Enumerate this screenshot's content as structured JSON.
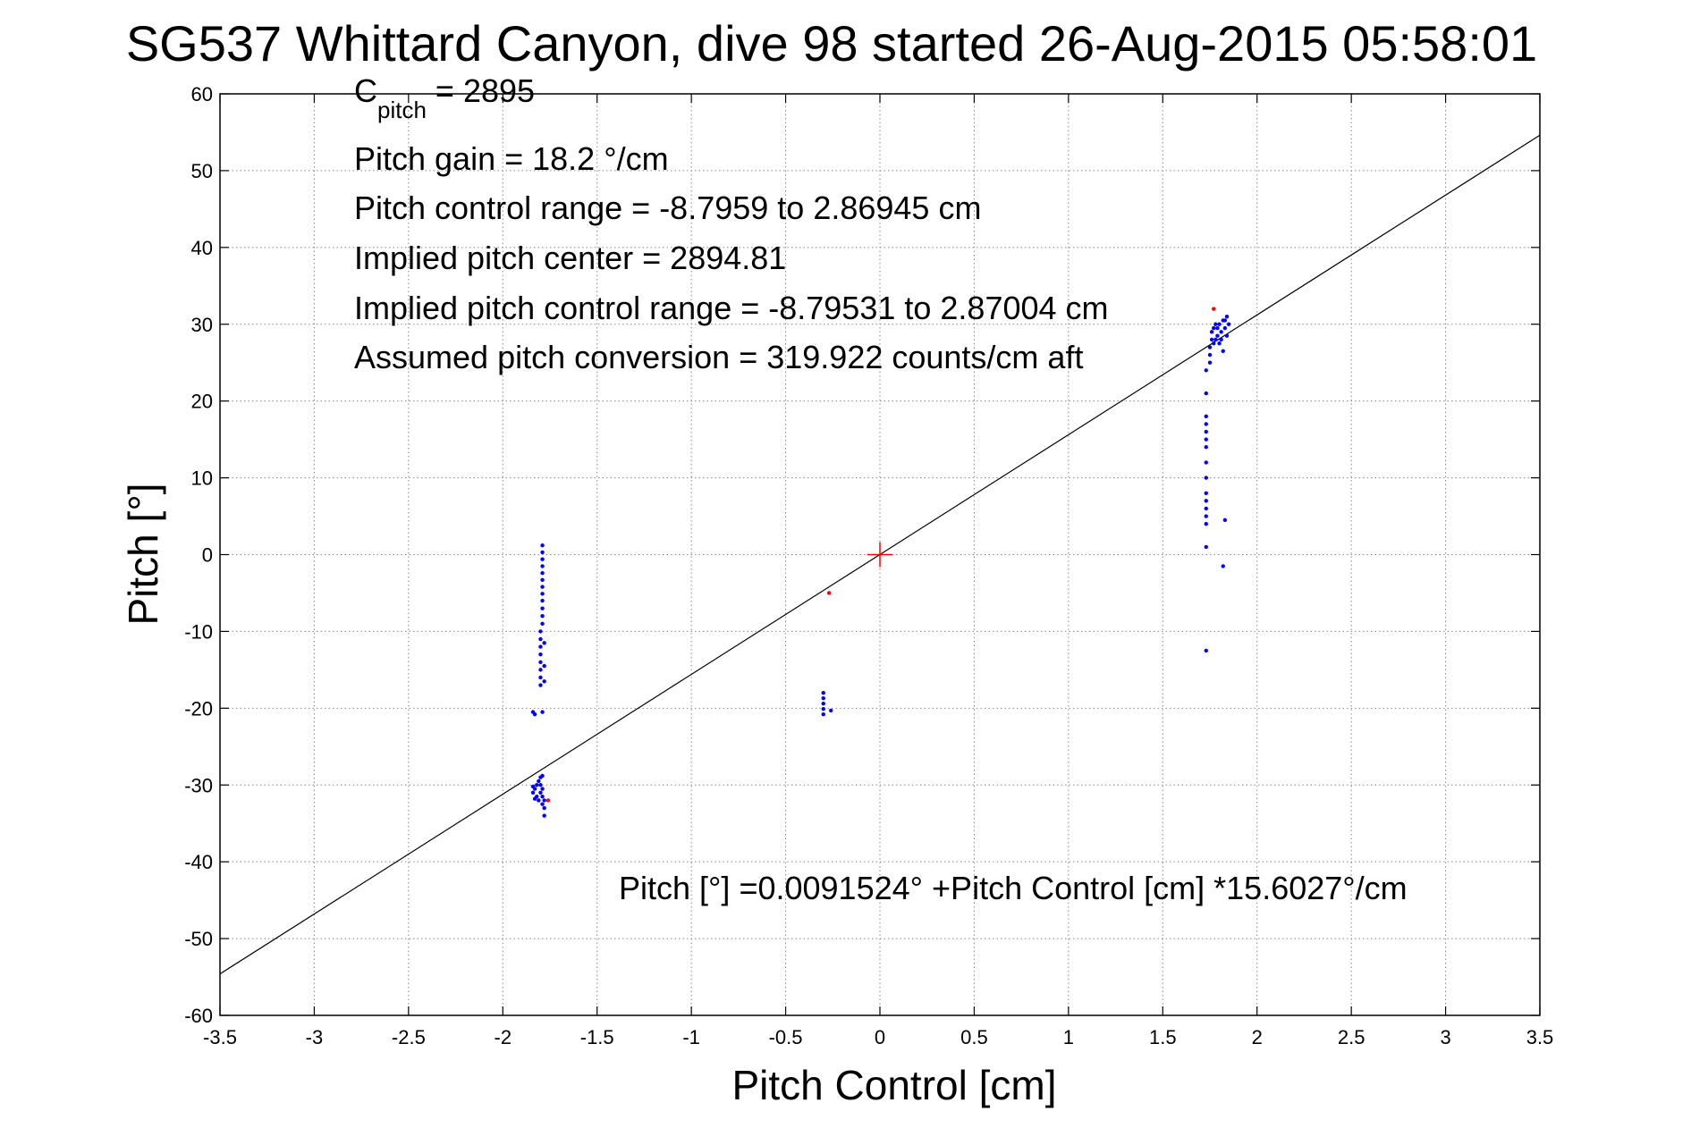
{
  "chart_data": {
    "type": "scatter",
    "title": "SG537 Whittard Canyon, dive 98 started 26-Aug-2015 05:58:01",
    "xlabel": "Pitch Control [cm]",
    "ylabel": "Pitch [°]",
    "xlim": [
      -3.5,
      3.5
    ],
    "ylim": [
      -60,
      60
    ],
    "grid": true,
    "legend": "none",
    "x_ticks": [
      "-3.5",
      "-3",
      "-2.5",
      "-2",
      "-1.5",
      "-1",
      "-0.5",
      "0",
      "0.5",
      "1",
      "1.5",
      "2",
      "2.5",
      "3",
      "3.5"
    ],
    "y_ticks": [
      "60",
      "50",
      "40",
      "30",
      "20",
      "10",
      "0",
      "-10",
      "-20",
      "-30",
      "-40",
      "-50",
      "-60"
    ],
    "annotations": {
      "c_pitch_main": "C",
      "c_pitch_sub": "pitch",
      "c_pitch_value": " = 2895",
      "pitch_gain": "Pitch gain = 18.2 °/cm",
      "control_range": "Pitch control range = -8.7959 to 2.86945 cm",
      "implied_center": "Implied pitch center = 2894.81",
      "implied_range": "Implied pitch control range = -8.79531 to 2.87004 cm",
      "conversion": "Assumed pitch conversion = 319.922 counts/cm aft",
      "fit_equation": "Pitch [°] =0.0091524° +Pitch Control [cm] *15.6027°/cm"
    },
    "fit_line": {
      "intercept": 0.0091524,
      "slope": 15.6027,
      "color": "#000000"
    },
    "center_marker": {
      "x": 0,
      "y": 0,
      "color": "#ff0000"
    },
    "series": [
      {
        "color": "#0000ff",
        "points": [
          [
            -1.79,
            1.2
          ],
          [
            -1.79,
            0.3
          ],
          [
            -1.79,
            -0.6
          ],
          [
            -1.79,
            -1.5
          ],
          [
            -1.79,
            -2.4
          ],
          [
            -1.79,
            -3.3
          ],
          [
            -1.79,
            -4.2
          ],
          [
            -1.79,
            -5.1
          ],
          [
            -1.79,
            -6.0
          ],
          [
            -1.79,
            -7.0
          ],
          [
            -1.79,
            -8.0
          ],
          [
            -1.79,
            -9.0
          ],
          [
            -1.8,
            -10.0
          ],
          [
            -1.8,
            -11.0
          ],
          [
            -1.8,
            -12.0
          ],
          [
            -1.8,
            -13.0
          ],
          [
            -1.8,
            -14.0
          ],
          [
            -1.8,
            -15.0
          ],
          [
            -1.8,
            -16.0
          ],
          [
            -1.8,
            -17.0
          ],
          [
            -1.78,
            -11.5
          ],
          [
            -1.78,
            -14.5
          ],
          [
            -1.78,
            -16.5
          ],
          [
            -1.84,
            -20.5
          ],
          [
            -1.83,
            -20.8
          ],
          [
            -1.79,
            -20.5
          ],
          [
            -1.84,
            -31.0
          ],
          [
            -1.83,
            -30.5
          ],
          [
            -1.82,
            -31.5
          ],
          [
            -1.82,
            -30.0
          ],
          [
            -1.81,
            -32.0
          ],
          [
            -1.81,
            -29.5
          ],
          [
            -1.8,
            -31.0
          ],
          [
            -1.8,
            -30.0
          ],
          [
            -1.8,
            -29.0
          ],
          [
            -1.79,
            -31.5
          ],
          [
            -1.79,
            -30.5
          ],
          [
            -1.79,
            -28.8
          ],
          [
            -1.78,
            -32.0
          ],
          [
            -1.78,
            -33.0
          ],
          [
            -1.78,
            -34.0
          ],
          [
            -1.79,
            -32.5
          ],
          [
            -1.83,
            -31.8
          ],
          [
            -1.84,
            -30.2
          ],
          [
            -0.3,
            -18.0
          ],
          [
            -0.3,
            -18.7
          ],
          [
            -0.3,
            -19.4
          ],
          [
            -0.3,
            -20.1
          ],
          [
            -0.3,
            -20.8
          ],
          [
            -0.26,
            -20.3
          ],
          [
            1.73,
            24.0
          ],
          [
            1.73,
            21.0
          ],
          [
            1.73,
            18.0
          ],
          [
            1.73,
            17.0
          ],
          [
            1.73,
            16.0
          ],
          [
            1.73,
            15.0
          ],
          [
            1.73,
            14.0
          ],
          [
            1.73,
            12.0
          ],
          [
            1.73,
            10.0
          ],
          [
            1.73,
            8.0
          ],
          [
            1.73,
            7.0
          ],
          [
            1.73,
            6.0
          ],
          [
            1.73,
            5.0
          ],
          [
            1.73,
            4.0
          ],
          [
            1.73,
            1.0
          ],
          [
            1.73,
            -12.5
          ],
          [
            1.83,
            4.5
          ],
          [
            1.82,
            -1.5
          ],
          [
            1.75,
            27.0
          ],
          [
            1.75,
            26.0
          ],
          [
            1.75,
            25.0
          ],
          [
            1.76,
            28.0
          ],
          [
            1.76,
            29.0
          ],
          [
            1.77,
            27.5
          ],
          [
            1.77,
            29.5
          ],
          [
            1.78,
            28.0
          ],
          [
            1.78,
            30.0
          ],
          [
            1.79,
            28.5
          ],
          [
            1.79,
            29.5
          ],
          [
            1.8,
            27.5
          ],
          [
            1.8,
            30.0
          ],
          [
            1.81,
            28.0
          ],
          [
            1.81,
            29.0
          ],
          [
            1.82,
            30.5
          ],
          [
            1.82,
            26.5
          ],
          [
            1.83,
            29.5
          ],
          [
            1.83,
            30.5
          ],
          [
            1.84,
            31.0
          ],
          [
            1.84,
            28.5
          ],
          [
            1.85,
            30.0
          ]
        ]
      },
      {
        "color": "#ff0000",
        "points": [
          [
            -0.27,
            -5.0
          ],
          [
            -1.76,
            -32.0
          ],
          [
            1.77,
            32.0
          ]
        ]
      }
    ]
  }
}
